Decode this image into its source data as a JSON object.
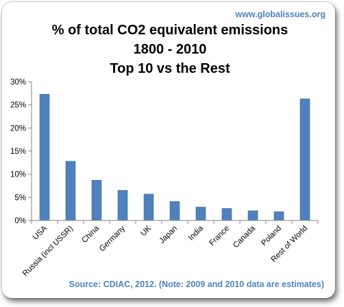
{
  "site": "www.globalissues.org",
  "source": "Source: CDIAC, 2012. (Note: 2009 and 2010 data are estimates)",
  "colors": {
    "bar": "#4f81bd",
    "bar_edge": "#3c6aa3",
    "site_text": "#4f81bd",
    "source_text": "#4f81bd",
    "axis": "#868686"
  },
  "chart_data": {
    "type": "bar",
    "title": [
      "% of total CO2 equivalent emissions",
      "1800 - 2010",
      "Top 10 vs the Rest"
    ],
    "categories": [
      "USA",
      "Russia (incl USSR)",
      "China",
      "Germany",
      "UK",
      "Japan",
      "India",
      "France",
      "Canada",
      "Poland",
      "Rest of World"
    ],
    "values": [
      27.3,
      12.8,
      8.7,
      6.5,
      5.7,
      4.1,
      2.9,
      2.6,
      2.1,
      1.9,
      26.3
    ],
    "xlabel": "",
    "ylabel": "",
    "ylim": [
      0,
      30
    ],
    "yticks": [
      "0%",
      "5%",
      "10%",
      "15%",
      "20%",
      "25%",
      "30%"
    ],
    "grid": false,
    "legend": "none"
  }
}
